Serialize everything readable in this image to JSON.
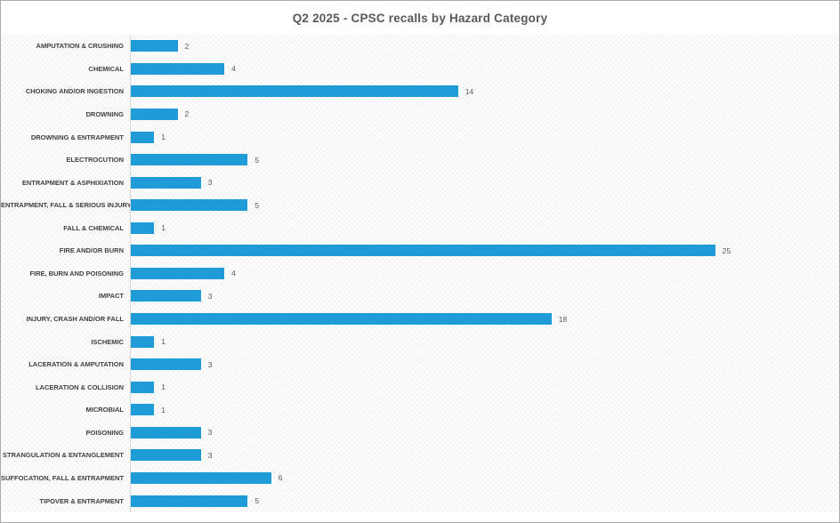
{
  "title": "Q2 2025 - CPSC recalls by Hazard Category",
  "colors": {
    "bar": "#1f9cd8",
    "title_text": "#595959",
    "category_text": "#404040",
    "value_text": "#595959",
    "axis_line": "#d6d6d6",
    "outer_border": "#ababab",
    "background": "#ffffff"
  },
  "chart_data": {
    "type": "bar",
    "orientation": "horizontal",
    "title": "Q2 2025 - CPSC recalls by Hazard Category",
    "categories": [
      "AMPUTATION & CRUSHING",
      "CHEMICAL",
      "CHOKING AND/OR INGESTION",
      "DROWNING",
      "DROWNING & ENTRAPMENT",
      "ELECTROCUTION",
      "ENTRAPMENT & ASPHIXIATION",
      "ENTRAPMENT, FALL & SERIOUS INJURY",
      "FALL & CHEMICAL",
      "FIRE AND/OR BURN",
      "FIRE, BURN AND POISONING",
      "IMPACT",
      "INJURY, CRASH AND/OR FALL",
      "ISCHEMIC",
      "LACERATION & AMPUTATION",
      "LACERATION & COLLISION",
      "MICROBIAL",
      "POISONING",
      "STRANGULATION & ENTANGLEMENT",
      "SUFFOCATION, FALL & ENTRAPMENT",
      "TIPOVER & ENTRAPMENT"
    ],
    "values": [
      2,
      4,
      14,
      2,
      1,
      5,
      3,
      5,
      1,
      25,
      4,
      3,
      18,
      1,
      3,
      1,
      1,
      3,
      3,
      6,
      5
    ],
    "xlabel": "",
    "ylabel": "",
    "xlim": [
      0,
      30
    ],
    "data_labels": true,
    "legend": "none",
    "gridlines": false
  }
}
